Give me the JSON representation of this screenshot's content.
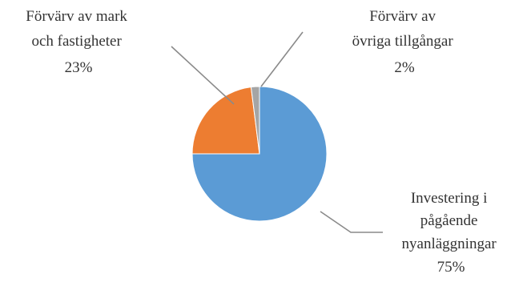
{
  "chart_data": {
    "type": "pie",
    "title": "",
    "slices": [
      {
        "label_lines": [
          "Investering i",
          "pågående",
          "nyanläggningar"
        ],
        "percent_label": "75%",
        "value": 75,
        "color": "#5b9bd5"
      },
      {
        "label_lines": [
          "Förvärv av mark",
          "och fastigheter"
        ],
        "percent_label": "23%",
        "value": 23,
        "color": "#ed7d31"
      },
      {
        "label_lines": [
          "Förvärv av",
          "övriga tillgångar"
        ],
        "percent_label": "2%",
        "value": 2,
        "color": "#a5a5a5"
      }
    ]
  }
}
